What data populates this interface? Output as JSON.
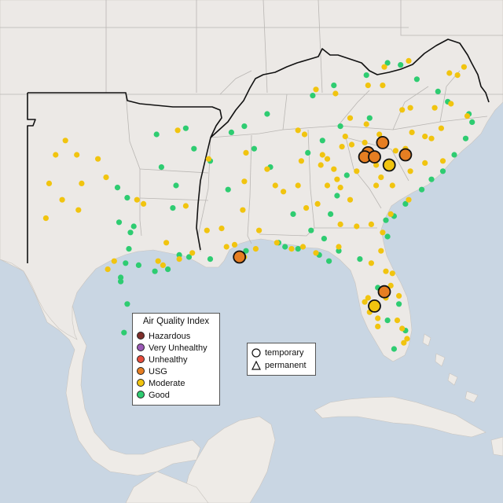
{
  "colors": {
    "ocean": "#c9d6e3",
    "land": "#ece9e6",
    "foreign_land": "#eeebe7",
    "state_border": "#b9b6b3",
    "region_border": "#111111",
    "Hazardous": "#7e2f2b",
    "Very Unhealthy": "#9b59b6",
    "Unhealthy": "#e74c3c",
    "USG": "#e67e22",
    "Moderate": "#f1c40f",
    "Good": "#2ecc71"
  },
  "legend": {
    "title": "Air Quality Index",
    "categories": [
      "Hazardous",
      "Very Unhealthy",
      "Unhealthy",
      "USG",
      "Moderate",
      "Good"
    ]
  },
  "shape_legend": {
    "temporary": "temporary",
    "permanent": "permanent"
  },
  "map": {
    "region": "Southeastern United States",
    "shapes": {
      "temporary": "circle",
      "permanent": "triangle"
    },
    "monitors": [
      {
        "lon": -81.6,
        "lat": 35.6,
        "aqi": "USG",
        "shape": "circle"
      },
      {
        "lon": -82.5,
        "lat": 35.1,
        "aqi": "USG",
        "shape": "circle"
      },
      {
        "lon": -82.7,
        "lat": 34.9,
        "aqi": "USG",
        "shape": "circle"
      },
      {
        "lon": -82.1,
        "lat": 34.9,
        "aqi": "USG",
        "shape": "circle"
      },
      {
        "lon": -80.2,
        "lat": 35.0,
        "aqi": "USG",
        "shape": "circle"
      },
      {
        "lon": -81.2,
        "lat": 34.5,
        "aqi": "Moderate",
        "shape": "circle"
      },
      {
        "lon": -90.4,
        "lat": 30.0,
        "aqi": "USG",
        "shape": "circle"
      },
      {
        "lon": -81.5,
        "lat": 28.3,
        "aqi": "USG",
        "shape": "circle"
      },
      {
        "lon": -82.1,
        "lat": 27.6,
        "aqi": "Moderate",
        "shape": "circle"
      }
    ],
    "small_monitors": {
      "Good": [
        [
          -97.9,
          33.4
        ],
        [
          -97.3,
          32.9
        ],
        [
          -94.3,
          33.5
        ],
        [
          -94.5,
          32.4
        ],
        [
          -97.1,
          31.2
        ],
        [
          -97.2,
          30.4
        ],
        [
          -97.4,
          29.7
        ],
        [
          -97.7,
          29.0
        ],
        [
          -97.7,
          28.8
        ],
        [
          -94.8,
          29.4
        ],
        [
          -95.6,
          29.3
        ],
        [
          -96.9,
          31.5
        ],
        [
          -97.8,
          31.7
        ],
        [
          -96.6,
          29.6
        ],
        [
          -94.1,
          30.1
        ],
        [
          -93.5,
          30.0
        ],
        [
          -92.2,
          29.9
        ],
        [
          -90.0,
          30.3
        ],
        [
          -88.0,
          30.7
        ],
        [
          -87.6,
          30.5
        ],
        [
          -86.8,
          30.4
        ],
        [
          -85.5,
          30.1
        ],
        [
          -84.9,
          29.8
        ],
        [
          -84.3,
          30.3
        ],
        [
          -83.0,
          29.9
        ],
        [
          -81.3,
          31.0
        ],
        [
          -81.4,
          31.8
        ],
        [
          -80.9,
          32.0
        ],
        [
          -80.2,
          32.6
        ],
        [
          -79.2,
          33.3
        ],
        [
          -78.6,
          33.8
        ],
        [
          -77.9,
          34.2
        ],
        [
          -77.2,
          35.0
        ],
        [
          -76.5,
          35.8
        ],
        [
          -76.1,
          36.6
        ],
        [
          -76.3,
          37.0
        ],
        [
          -77.6,
          37.6
        ],
        [
          -78.2,
          38.1
        ],
        [
          -79.5,
          38.7
        ],
        [
          -80.5,
          39.4
        ],
        [
          -81.3,
          39.5
        ],
        [
          -82.6,
          38.9
        ],
        [
          -84.6,
          38.4
        ],
        [
          -85.9,
          37.9
        ],
        [
          -88.7,
          37.0
        ],
        [
          -90.1,
          36.4
        ],
        [
          -89.5,
          35.3
        ],
        [
          -88.5,
          34.4
        ],
        [
          -87.1,
          32.1
        ],
        [
          -86.0,
          31.3
        ],
        [
          -84.8,
          32.1
        ],
        [
          -81.9,
          28.5
        ],
        [
          -81.3,
          26.9
        ],
        [
          -80.2,
          26.4
        ],
        [
          -80.6,
          27.7
        ],
        [
          -80.9,
          25.5
        ],
        [
          -97.5,
          26.3
        ],
        [
          -97.3,
          27.7
        ],
        [
          -93.2,
          35.3
        ],
        [
          -93.7,
          36.3
        ],
        [
          -92.2,
          34.7
        ],
        [
          -91.1,
          33.3
        ],
        [
          -90.9,
          36.1
        ],
        [
          -95.2,
          34.4
        ],
        [
          -95.5,
          36.0
        ],
        [
          -84.2,
          36.4
        ],
        [
          -85.3,
          35.7
        ],
        [
          -86.2,
          35.1
        ],
        [
          -83.8,
          34.0
        ],
        [
          -84.4,
          33.0
        ],
        [
          -85.2,
          30.9
        ],
        [
          -82.4,
          36.8
        ]
      ],
      "Moderate": [
        [
          -101.7,
          35.0
        ],
        [
          -101.1,
          35.7
        ],
        [
          -100.4,
          35.0
        ],
        [
          -99.1,
          34.8
        ],
        [
          -100.1,
          33.6
        ],
        [
          -102.1,
          33.6
        ],
        [
          -101.3,
          32.8
        ],
        [
          -102.3,
          31.9
        ],
        [
          -100.3,
          32.3
        ],
        [
          -98.6,
          33.9
        ],
        [
          -96.7,
          32.8
        ],
        [
          -96.3,
          32.6
        ],
        [
          -98.5,
          29.4
        ],
        [
          -98.1,
          29.8
        ],
        [
          -95.4,
          29.8
        ],
        [
          -95.1,
          29.6
        ],
        [
          -94.1,
          29.9
        ],
        [
          -93.3,
          30.2
        ],
        [
          -91.2,
          30.5
        ],
        [
          -90.7,
          30.6
        ],
        [
          -90.1,
          30.0
        ],
        [
          -89.4,
          30.4
        ],
        [
          -88.1,
          30.7
        ],
        [
          -87.2,
          30.4
        ],
        [
          -86.5,
          30.5
        ],
        [
          -85.7,
          30.2
        ],
        [
          -84.3,
          30.5
        ],
        [
          -82.3,
          29.7
        ],
        [
          -81.7,
          30.3
        ],
        [
          -81.4,
          29.3
        ],
        [
          -81.1,
          28.6
        ],
        [
          -81.4,
          28.0
        ],
        [
          -82.5,
          28.0
        ],
        [
          -82.7,
          27.8
        ],
        [
          -81.9,
          27.0
        ],
        [
          -81.9,
          26.6
        ],
        [
          -80.7,
          26.9
        ],
        [
          -80.1,
          26.0
        ],
        [
          -80.3,
          25.8
        ],
        [
          -80.4,
          26.5
        ],
        [
          -80.6,
          28.1
        ],
        [
          -82.4,
          27.3
        ],
        [
          -81.0,
          29.2
        ],
        [
          -81.6,
          31.2
        ],
        [
          -81.1,
          32.1
        ],
        [
          -80.0,
          32.8
        ],
        [
          -81.0,
          33.5
        ],
        [
          -81.7,
          33.9
        ],
        [
          -82.4,
          34.8
        ],
        [
          -82.0,
          34.5
        ],
        [
          -83.2,
          34.2
        ],
        [
          -84.4,
          33.8
        ],
        [
          -84.2,
          33.4
        ],
        [
          -84.6,
          34.3
        ],
        [
          -85.0,
          34.8
        ],
        [
          -85.4,
          34.5
        ],
        [
          -85.0,
          33.5
        ],
        [
          -86.8,
          33.5
        ],
        [
          -86.6,
          34.7
        ],
        [
          -87.7,
          33.2
        ],
        [
          -86.3,
          32.4
        ],
        [
          -85.6,
          32.6
        ],
        [
          -88.7,
          34.3
        ],
        [
          -90.2,
          32.3
        ],
        [
          -88.2,
          33.5
        ],
        [
          -90.0,
          35.1
        ],
        [
          -86.8,
          36.2
        ],
        [
          -86.4,
          36.0
        ],
        [
          -85.3,
          35.0
        ],
        [
          -83.9,
          35.9
        ],
        [
          -84.1,
          35.4
        ],
        [
          -83.5,
          35.5
        ],
        [
          -82.7,
          35.6
        ],
        [
          -81.8,
          36.0
        ],
        [
          -80.8,
          35.2
        ],
        [
          -80.2,
          35.3
        ],
        [
          -79.8,
          36.1
        ],
        [
          -79.0,
          35.9
        ],
        [
          -78.6,
          35.8
        ],
        [
          -78.0,
          36.3
        ],
        [
          -77.4,
          37.5
        ],
        [
          -78.4,
          37.3
        ],
        [
          -79.9,
          37.3
        ],
        [
          -80.4,
          37.2
        ],
        [
          -82.6,
          36.5
        ],
        [
          -83.6,
          36.8
        ],
        [
          -85.7,
          38.2
        ],
        [
          -84.5,
          38.0
        ],
        [
          -82.5,
          38.4
        ],
        [
          -81.6,
          38.4
        ],
        [
          -81.5,
          39.3
        ],
        [
          -80.0,
          39.6
        ],
        [
          -77.5,
          39.0
        ],
        [
          -77.0,
          38.9
        ],
        [
          -76.6,
          39.3
        ],
        [
          -76.4,
          36.9
        ],
        [
          -77.9,
          34.7
        ],
        [
          -79.0,
          34.6
        ],
        [
          -79.9,
          34.2
        ],
        [
          -82.3,
          31.6
        ],
        [
          -83.2,
          31.5
        ],
        [
          -84.2,
          31.6
        ],
        [
          -83.6,
          32.8
        ],
        [
          -82.0,
          33.5
        ],
        [
          -91.5,
          31.4
        ],
        [
          -92.4,
          31.3
        ],
        [
          -93.7,
          32.5
        ],
        [
          -94.9,
          30.7
        ],
        [
          -92.3,
          34.8
        ],
        [
          -94.2,
          36.2
        ],
        [
          -90.1,
          33.7
        ],
        [
          -89.2,
          31.3
        ]
      ]
    }
  }
}
